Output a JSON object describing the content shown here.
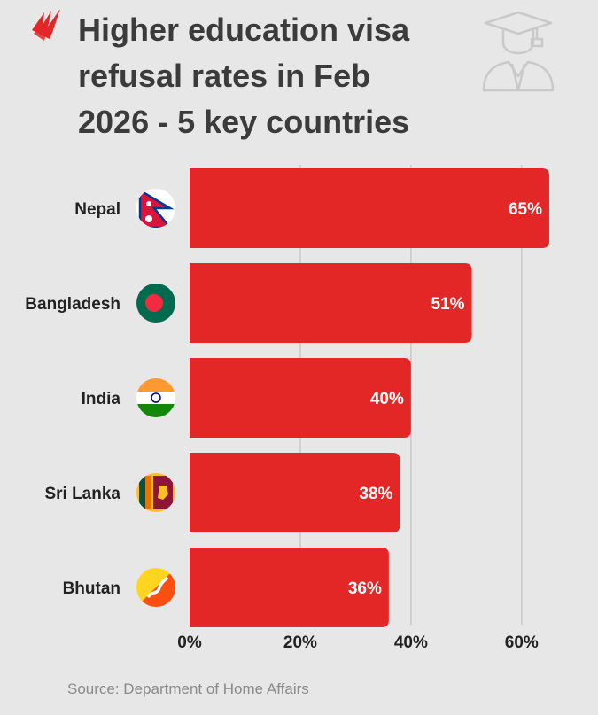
{
  "title_lines": [
    "Higher education visa",
    "refusal rates in Feb",
    "2026 - 5 key countries"
  ],
  "source": "Source: Department of Home Affairs",
  "icons": {
    "brand": "sbs-logo-icon",
    "decor": "graduate-icon"
  },
  "colors": {
    "bar": "#e32727",
    "grid": "#c9c9c9",
    "text": "#222222",
    "background": "#e7e7e7"
  },
  "chart_data": {
    "type": "bar",
    "orientation": "horizontal",
    "categories": [
      "Nepal",
      "Bangladesh",
      "India",
      "Sri Lanka",
      "Bhutan"
    ],
    "values": [
      65,
      51,
      40,
      38,
      36
    ],
    "data_labels": [
      "65%",
      "51%",
      "40%",
      "38%",
      "36%"
    ],
    "flags": [
      "nepal-flag-icon",
      "bangladesh-flag-icon",
      "india-flag-icon",
      "sri-lanka-flag-icon",
      "bhutan-flag-icon"
    ],
    "x_ticks": [
      0,
      20,
      40,
      60
    ],
    "x_tick_labels": [
      "0%",
      "20%",
      "40%",
      "60%"
    ],
    "xlim": [
      0,
      65
    ],
    "grid": true,
    "legend": "none"
  }
}
